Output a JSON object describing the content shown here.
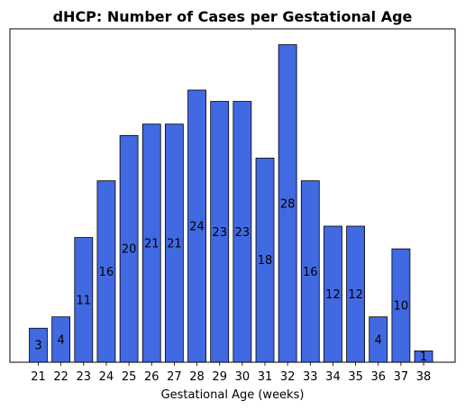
{
  "chart_data": {
    "type": "bar",
    "title": "dHCP: Number of Cases per Gestational Age",
    "xlabel": "Gestational Age (weeks)",
    "ylabel": "",
    "categories": [
      "21",
      "22",
      "23",
      "24",
      "25",
      "26",
      "27",
      "28",
      "29",
      "30",
      "31",
      "32",
      "33",
      "34",
      "35",
      "36",
      "37",
      "38"
    ],
    "values": [
      3,
      4,
      11,
      16,
      20,
      21,
      21,
      24,
      23,
      23,
      18,
      28,
      16,
      12,
      12,
      4,
      10,
      1
    ],
    "data_labels": [
      "3",
      "4",
      "11",
      "16",
      "20",
      "21",
      "21",
      "24",
      "23",
      "23",
      "18",
      "28",
      "16",
      "12",
      "12",
      "4",
      "10",
      "1"
    ],
    "ylim": [
      0,
      29.4
    ],
    "bar_color": "#4169e1",
    "edge_color": "#000000",
    "grid": false,
    "y_ticks_shown": false
  }
}
